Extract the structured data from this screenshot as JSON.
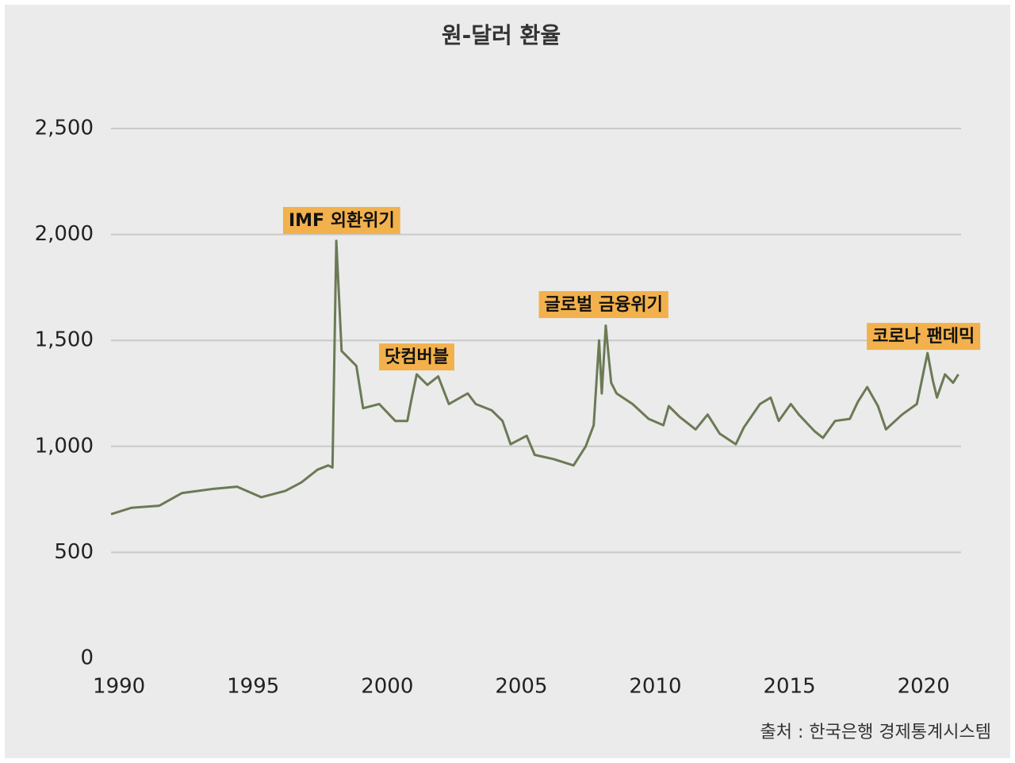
{
  "chart_data": {
    "type": "line",
    "title": "원-달러 환율",
    "source": "출처 : 한국은행 경제통계시스템",
    "x": [
      1989.7,
      1990.45,
      1991.5,
      1992.35,
      1993.55,
      1994.4,
      1995.3,
      1996.2,
      1996.8,
      1997.4,
      1997.8,
      1997.96,
      1998.1,
      1998.3,
      1998.85,
      1999.1,
      1999.7,
      2000.3,
      2000.75,
      2000.9,
      2001.1,
      2001.5,
      2001.9,
      2002.3,
      2003.0,
      2003.3,
      2003.9,
      2004.3,
      2004.6,
      2005.2,
      2005.5,
      2006.2,
      2006.95,
      2007.4,
      2007.7,
      2007.9,
      2008.0,
      2008.15,
      2008.35,
      2008.55,
      2009.15,
      2009.75,
      2010.3,
      2010.5,
      2010.9,
      2011.5,
      2011.95,
      2012.4,
      2013.0,
      2013.3,
      2013.9,
      2014.3,
      2014.6,
      2015.05,
      2015.35,
      2015.95,
      2016.25,
      2016.7,
      2017.25,
      2017.55,
      2017.9,
      2018.3,
      2018.6,
      2019.2,
      2019.75,
      2020.15,
      2020.35,
      2020.5,
      2020.8,
      2021.1,
      2021.3
    ],
    "series": [
      {
        "color": "#6b7a55",
        "values": [
          680,
          710,
          720,
          780,
          800,
          810,
          760,
          790,
          830,
          890,
          910,
          900,
          1970,
          1450,
          1380,
          1180,
          1200,
          1120,
          1120,
          1220,
          1340,
          1290,
          1330,
          1200,
          1250,
          1200,
          1170,
          1120,
          1010,
          1050,
          960,
          940,
          910,
          1000,
          1100,
          1500,
          1250,
          1570,
          1300,
          1250,
          1200,
          1130,
          1100,
          1190,
          1140,
          1080,
          1150,
          1060,
          1010,
          1090,
          1200,
          1230,
          1120,
          1200,
          1150,
          1070,
          1040,
          1120,
          1130,
          1210,
          1280,
          1190,
          1080,
          1150,
          1200,
          1440,
          1310,
          1230,
          1340,
          1300,
          1340
        ]
      }
    ],
    "xlim": [
      1989.7,
      2021.4
    ],
    "xticks": [
      1990,
      1995,
      2000,
      2005,
      2010,
      2015,
      2020
    ],
    "ylim": [
      0,
      2500
    ],
    "yticks": [
      0,
      500,
      {
        "value": 1000,
        "label": "1,000"
      },
      {
        "value": 1500,
        "label": "1,500"
      },
      {
        "value": 2000,
        "label": "2,000"
      },
      {
        "value": 2500,
        "label": "2,500"
      }
    ],
    "grid": true,
    "annotations": [
      {
        "text": "IMF 외환위기",
        "x": 1998.3,
        "y": 2066,
        "color": "#f2b14c"
      },
      {
        "text": "닷컴버블",
        "x": 2001.1,
        "y": 1422,
        "color": "#f2b14c"
      },
      {
        "text": "글로벌 금융위기",
        "x": 2008.07,
        "y": 1669,
        "color": "#f2b14c"
      },
      {
        "text": "코로나 팬데믹",
        "x": 2020.0,
        "y": 1519,
        "color": "#f2b14c"
      }
    ]
  }
}
